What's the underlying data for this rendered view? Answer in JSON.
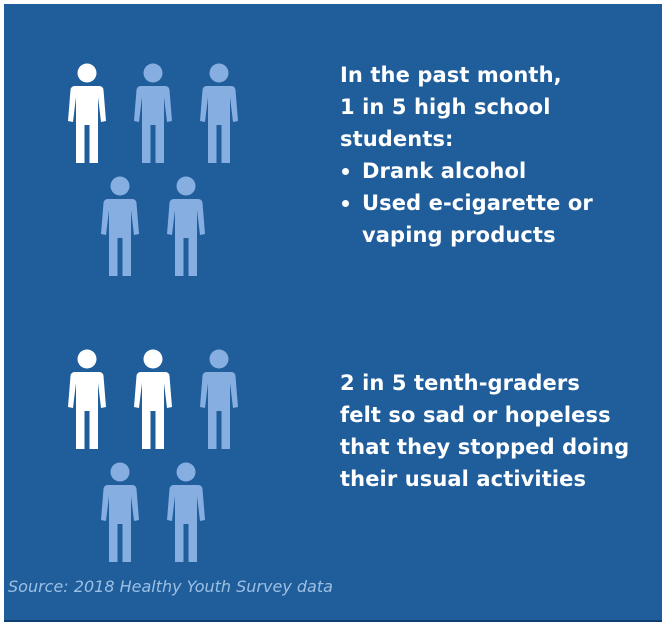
{
  "colors": {
    "background": "#1f5d9b",
    "highlight_figure": "#ffffff",
    "muted_figure": "#86aee0",
    "text": "#ffffff",
    "source_text": "#9cc0e4"
  },
  "stat_1": {
    "icon": "person-icon",
    "highlighted_count": 1,
    "total_count": 5,
    "heading_lines": [
      "In the past month,",
      "1 in 5 high school",
      "students:"
    ],
    "bullets": [
      {
        "lines": [
          "Drank alcohol"
        ]
      },
      {
        "lines": [
          "Used e-cigarette or",
          "vaping products"
        ]
      }
    ]
  },
  "stat_2": {
    "icon": "person-icon",
    "highlighted_count": 2,
    "total_count": 5,
    "lines": [
      "2 in 5 tenth-graders",
      "felt so sad or hopeless",
      "that they stopped doing",
      "their usual activities"
    ]
  },
  "source": "Source: 2018 Healthy Youth Survey data"
}
